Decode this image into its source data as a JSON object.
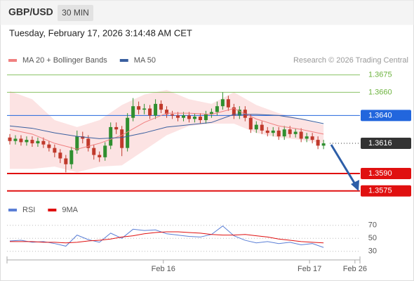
{
  "header": {
    "symbol": "GBP/USD",
    "interval": "30 MIN",
    "timestamp": "Tuesday, February 17, 2026 3:14:48 AM CET",
    "source": "Research © 2026 Trading Central"
  },
  "chart_data": [
    {
      "type": "candlestick",
      "xlim": [
        -0.5,
        62.5
      ],
      "ylim": [
        1.3567,
        1.3682
      ],
      "up_color": "#2f8f2f",
      "down_color": "#c0392b",
      "open": [
        1.3621,
        1.3618,
        1.362,
        1.3617,
        1.3619,
        1.3616,
        1.3618,
        1.3615,
        1.3612,
        1.3608,
        1.3603,
        1.3598,
        1.361,
        1.3622,
        1.362,
        1.3612,
        1.3606,
        1.3604,
        1.3614,
        1.363,
        1.3628,
        1.3612,
        1.3638,
        1.3648,
        1.3645,
        1.3646,
        1.364,
        1.365,
        1.3645,
        1.3641,
        1.364,
        1.3638,
        1.364,
        1.3637,
        1.3639,
        1.3636,
        1.3641,
        1.3643,
        1.3648,
        1.3654,
        1.3647,
        1.364,
        1.3645,
        1.3638,
        1.3628,
        1.3632,
        1.3627,
        1.3625,
        1.3627,
        1.3622,
        1.3628,
        1.3624,
        1.3626,
        1.362,
        1.3622,
        1.3619,
        1.3614
      ],
      "high": [
        1.3624,
        1.3623,
        1.3623,
        1.3622,
        1.3622,
        1.3621,
        1.3621,
        1.3618,
        1.3615,
        1.3611,
        1.3606,
        1.3613,
        1.3627,
        1.3626,
        1.3623,
        1.3615,
        1.3609,
        1.3617,
        1.3634,
        1.3634,
        1.3631,
        1.3642,
        1.3655,
        1.3652,
        1.365,
        1.3649,
        1.3654,
        1.3653,
        1.3648,
        1.3644,
        1.3643,
        1.3643,
        1.3643,
        1.3642,
        1.3642,
        1.3644,
        1.3646,
        1.3652,
        1.366,
        1.3657,
        1.365,
        1.3648,
        1.3648,
        1.3641,
        1.3635,
        1.3635,
        1.363,
        1.363,
        1.363,
        1.3631,
        1.3631,
        1.3629,
        1.3629,
        1.3625,
        1.3625,
        1.3622,
        1.3619
      ],
      "low": [
        1.3615,
        1.3615,
        1.3614,
        1.3614,
        1.3613,
        1.3613,
        1.3612,
        1.3609,
        1.3604,
        1.3599,
        1.3591,
        1.3594,
        1.3607,
        1.3616,
        1.3609,
        1.3602,
        1.36,
        1.3601,
        1.3611,
        1.3624,
        1.3605,
        1.3609,
        1.3635,
        1.3641,
        1.3641,
        1.3637,
        1.3637,
        1.3642,
        1.3638,
        1.3637,
        1.3635,
        1.3635,
        1.3634,
        1.3634,
        1.3633,
        1.3633,
        1.3638,
        1.364,
        1.3645,
        1.3644,
        1.3637,
        1.3637,
        1.3635,
        1.3625,
        1.3625,
        1.3624,
        1.3622,
        1.3622,
        1.3619,
        1.3619,
        1.3621,
        1.3621,
        1.3617,
        1.3617,
        1.3616,
        1.3611,
        1.3611
      ],
      "close": [
        1.3618,
        1.362,
        1.3617,
        1.3619,
        1.3616,
        1.3618,
        1.3615,
        1.3612,
        1.3608,
        1.3603,
        1.3598,
        1.361,
        1.3622,
        1.362,
        1.3612,
        1.3606,
        1.3604,
        1.3614,
        1.363,
        1.3628,
        1.3612,
        1.3638,
        1.3648,
        1.3645,
        1.3646,
        1.364,
        1.365,
        1.3645,
        1.3641,
        1.364,
        1.3638,
        1.364,
        1.3637,
        1.3639,
        1.3636,
        1.3641,
        1.3643,
        1.3648,
        1.3654,
        1.3647,
        1.364,
        1.3645,
        1.3638,
        1.3628,
        1.3632,
        1.3627,
        1.3625,
        1.3627,
        1.3622,
        1.3628,
        1.3624,
        1.3626,
        1.362,
        1.3622,
        1.3619,
        1.3614,
        1.3616
      ],
      "series": [
        {
          "name": "MA 20 + Bollinger Bands",
          "color": "#f08080",
          "x": [
            0,
            4,
            8,
            12,
            16,
            20,
            24,
            28,
            32,
            36,
            40,
            44,
            48,
            52,
            56
          ],
          "values": [
            1.3628,
            1.3624,
            1.3616,
            1.3611,
            1.3616,
            1.3623,
            1.3634,
            1.3642,
            1.3642,
            1.3641,
            1.3646,
            1.3637,
            1.3631,
            1.3628,
            1.3624
          ],
          "upper": [
            1.3661,
            1.3654,
            1.3636,
            1.363,
            1.3636,
            1.3649,
            1.3658,
            1.3662,
            1.3654,
            1.365,
            1.366,
            1.3649,
            1.3642,
            1.3637,
            1.3632
          ],
          "lower": [
            1.3594,
            1.3594,
            1.3596,
            1.3591,
            1.3596,
            1.3597,
            1.361,
            1.3623,
            1.3631,
            1.3633,
            1.3633,
            1.3625,
            1.3621,
            1.3619,
            1.3616
          ]
        },
        {
          "name": "MA 50",
          "color": "#3a5f9f",
          "x": [
            0,
            4,
            8,
            12,
            16,
            20,
            24,
            28,
            32,
            36,
            40,
            44,
            48,
            52,
            56
          ],
          "values": [
            1.3631,
            1.3629,
            1.3625,
            1.3622,
            1.362,
            1.3621,
            1.3625,
            1.363,
            1.3632,
            1.3634,
            1.3641,
            1.3641,
            1.364,
            1.3637,
            1.3633
          ]
        }
      ],
      "levels": [
        {
          "value": 1.3675,
          "label": "1.3675",
          "color": "#6db33f"
        },
        {
          "value": 1.366,
          "label": "1.3660",
          "color": "#6db33f"
        },
        {
          "value": 1.364,
          "label": "1.3640",
          "color": "#2266dd"
        },
        {
          "value": 1.3616,
          "label": "1.3616",
          "color": "#333333"
        },
        {
          "value": 1.359,
          "label": "1.3590",
          "color": "#e01010"
        },
        {
          "value": 1.3575,
          "label": "1.3575",
          "color": "#e01010"
        }
      ]
    },
    {
      "type": "line",
      "xlim": [
        -0.5,
        62.5
      ],
      "ylim": [
        19,
        87
      ],
      "yticks": [
        70,
        50,
        30
      ],
      "grid": true,
      "xticks": [
        {
          "value": 27.4,
          "label": "Feb 16"
        },
        {
          "value": 53.5,
          "label": "Feb 17"
        },
        {
          "value": 61.6,
          "label": "Feb 26"
        }
      ],
      "series": [
        {
          "name": "RSI",
          "color": "#5b7fd6",
          "x": [
            0,
            2,
            4,
            6,
            8,
            10,
            12,
            14,
            16,
            18,
            20,
            22,
            24,
            26,
            28,
            30,
            32,
            34,
            36,
            38,
            40,
            42,
            44,
            46,
            48,
            50,
            52,
            54,
            56
          ],
          "values": [
            46,
            47,
            44,
            45,
            42,
            38,
            55,
            48,
            44,
            58,
            50,
            64,
            62,
            63,
            57,
            55,
            53,
            52,
            56,
            69,
            54,
            47,
            43,
            45,
            42,
            44,
            40,
            42,
            36
          ]
        },
        {
          "name": "9MA",
          "color": "#e01010",
          "x": [
            0,
            2,
            4,
            6,
            8,
            10,
            12,
            14,
            16,
            18,
            20,
            22,
            24,
            26,
            28,
            30,
            32,
            34,
            36,
            38,
            40,
            42,
            44,
            46,
            48,
            50,
            52,
            54,
            56
          ],
          "values": [
            45,
            45,
            45,
            44,
            44,
            43,
            44,
            46,
            47,
            49,
            52,
            54,
            57,
            59,
            60,
            60,
            59,
            58,
            56,
            55,
            55,
            56,
            54,
            52,
            49,
            47,
            45,
            44,
            43
          ]
        }
      ]
    }
  ]
}
